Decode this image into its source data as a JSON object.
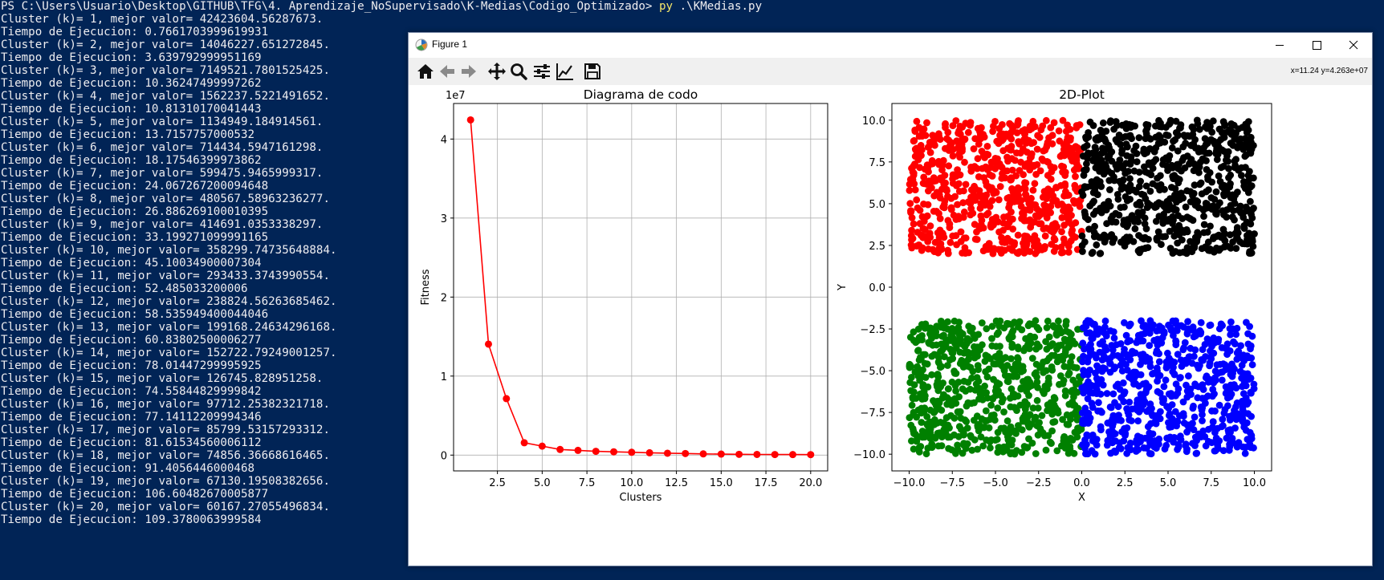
{
  "terminal": {
    "prompt_path": "PS C:\\Users\\Usuario\\Desktop\\GITHUB\\TFG\\4. Aprendizaje_NoSupervisado\\K-Medias\\Codigo_Optimizado>",
    "command": "py",
    "command_arg": ".\\KMedias.py",
    "output_lines": [
      "Cluster (k)= 1, mejor valor= 42423604.56287673.",
      "Tiempo de Ejecucion: 0.7661703999619931",
      "Cluster (k)= 2, mejor valor= 14046227.651272845.",
      "Tiempo de Ejecucion: 3.639792999951169",
      "Cluster (k)= 3, mejor valor= 7149521.7801525425.",
      "Tiempo de Ejecucion: 10.36247499997262",
      "Cluster (k)= 4, mejor valor= 1562237.5221491652.",
      "Tiempo de Ejecucion: 10.81310170041443",
      "Cluster (k)= 5, mejor valor= 1134949.184914561.",
      "Tiempo de Ejecucion: 13.7157757000532",
      "Cluster (k)= 6, mejor valor= 714434.5947161298.",
      "Tiempo de Ejecucion: 18.17546399973862",
      "Cluster (k)= 7, mejor valor= 599475.9465999317.",
      "Tiempo de Ejecucion: 24.067267200094648",
      "Cluster (k)= 8, mejor valor= 480567.58963236277.",
      "Tiempo de Ejecucion: 26.886269100010395",
      "Cluster (k)= 9, mejor valor= 414691.0353338297.",
      "Tiempo de Ejecucion: 33.199271099991165",
      "Cluster (k)= 10, mejor valor= 358299.74735648884.",
      "Tiempo de Ejecucion: 45.10034900007304",
      "Cluster (k)= 11, mejor valor= 293433.3743990554.",
      "Tiempo de Ejecucion: 52.485033200006",
      "Cluster (k)= 12, mejor valor= 238824.56263685462.",
      "Tiempo de Ejecucion: 58.535949400044046",
      "Cluster (k)= 13, mejor valor= 199168.24634296168.",
      "Tiempo de Ejecucion: 60.83802500006277",
      "Cluster (k)= 14, mejor valor= 152722.79249001257.",
      "Tiempo de Ejecucion: 78.01447299995925",
      "Cluster (k)= 15, mejor valor= 126745.828951258.",
      "Tiempo de Ejecucion: 74.55844829999842",
      "Cluster (k)= 16, mejor valor= 97712.25382321718.",
      "Tiempo de Ejecucion: 77.14112209994346",
      "Cluster (k)= 17, mejor valor= 85799.53157293312.",
      "Tiempo de Ejecucion: 81.61534560006112",
      "Cluster (k)= 18, mejor valor= 74856.36668616465.",
      "Tiempo de Ejecucion: 91.4056446000468",
      "Cluster (k)= 19, mejor valor= 67130.19508382656.",
      "Tiempo de Ejecucion: 106.60482670005877",
      "Cluster (k)= 20, mejor valor= 60167.27055496834.",
      "Tiempo de Ejecucion: 109.3780063999584"
    ]
  },
  "window": {
    "title": "Figure 1",
    "coord_readout": "x=11.24 y=4.263e+07",
    "toolbar_icons": [
      "home-icon",
      "back-icon",
      "forward-icon",
      "pan-icon",
      "zoom-icon",
      "configure-subplots-icon",
      "edit-axis-icon",
      "save-icon"
    ]
  },
  "colors": {
    "terminal_bg": "#012456",
    "terminal_text": "#eeedf0",
    "terminal_command": "#f5e76a",
    "elbow_line": "#ff0000"
  },
  "chart_data": [
    {
      "type": "line",
      "title": "Diagrama de codo",
      "xlabel": "Clusters",
      "ylabel": "Fitness",
      "offset_text": "1e7",
      "x": [
        1,
        2,
        3,
        4,
        5,
        6,
        7,
        8,
        9,
        10,
        11,
        12,
        13,
        14,
        15,
        16,
        17,
        18,
        19,
        20
      ],
      "y": [
        42423604.56,
        14046227.65,
        7149521.78,
        1562237.52,
        1134949.18,
        714434.59,
        599475.95,
        480567.59,
        414691.04,
        358299.75,
        293433.37,
        238824.56,
        199168.25,
        152722.79,
        126745.83,
        97712.25,
        85799.53,
        74856.37,
        67130.2,
        60167.27
      ],
      "xlim": [
        0.05,
        20.95
      ],
      "ylim": [
        -2000000,
        44500000
      ],
      "xticks": [
        2.5,
        5.0,
        7.5,
        10.0,
        12.5,
        15.0,
        17.5,
        20.0
      ],
      "xtick_labels": [
        "2.5",
        "5.0",
        "7.5",
        "10.0",
        "12.5",
        "15.0",
        "17.5",
        "20.0"
      ],
      "yticks": [
        0,
        10000000,
        20000000,
        30000000,
        40000000
      ],
      "ytick_labels": [
        "0",
        "1",
        "2",
        "3",
        "4"
      ],
      "grid": true,
      "color": "#ff0000",
      "marker": "circle"
    },
    {
      "type": "scatter",
      "title": "2D-Plot",
      "xlabel": "X",
      "ylabel": "Y",
      "xlim": [
        -11,
        11
      ],
      "ylim": [
        -11,
        11
      ],
      "xticks": [
        -10,
        -7.5,
        -5,
        -2.5,
        0,
        2.5,
        5,
        7.5,
        10
      ],
      "xtick_labels": [
        "−10.0",
        "−7.5",
        "−5.0",
        "−2.5",
        "0.0",
        "2.5",
        "5.0",
        "7.5",
        "10.0"
      ],
      "yticks": [
        -10,
        -7.5,
        -5,
        -2.5,
        0,
        2.5,
        5,
        7.5,
        10
      ],
      "ytick_labels": [
        "−10.0",
        "−7.5",
        "−5.0",
        "−2.5",
        "0.0",
        "2.5",
        "5.0",
        "7.5",
        "10.0"
      ],
      "grid": false,
      "clusters": [
        {
          "color": "#ff0000",
          "x_range": [
            -10,
            0
          ],
          "y_range": [
            2,
            10
          ],
          "n_points": 700
        },
        {
          "color": "#000000",
          "x_range": [
            0,
            10
          ],
          "y_range": [
            2,
            10
          ],
          "n_points": 700
        },
        {
          "color": "#008000",
          "x_range": [
            -10,
            0
          ],
          "y_range": [
            -10,
            -2
          ],
          "n_points": 700
        },
        {
          "color": "#0000ff",
          "x_range": [
            0,
            10
          ],
          "y_range": [
            -10,
            -2
          ],
          "n_points": 700
        }
      ]
    }
  ]
}
